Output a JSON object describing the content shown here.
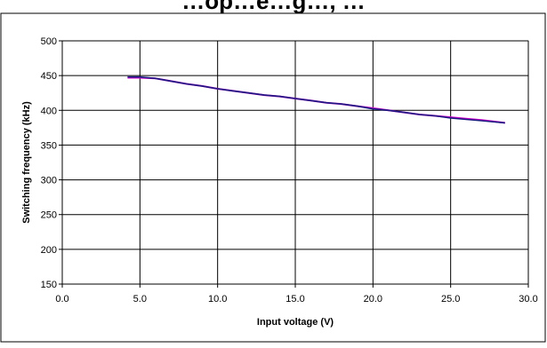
{
  "chart_data": {
    "type": "line",
    "title": "…op…e…g…, …",
    "xlabel": "Input voltage (V)",
    "ylabel": "Switching frequency (kHz)",
    "xlim": [
      0,
      30
    ],
    "ylim": [
      150,
      500
    ],
    "x_ticks": [
      "0.0",
      "5.0",
      "10.0",
      "15.0",
      "20.0",
      "25.0",
      "30.0"
    ],
    "y_ticks": [
      "150",
      "200",
      "250",
      "300",
      "350",
      "400",
      "450",
      "500"
    ],
    "grid": true,
    "series": [
      {
        "color": "#cc00cc",
        "x": [
          4.2,
          5.0,
          6.0,
          7.0,
          8.0,
          9.0,
          10.0,
          11.0,
          12.0,
          13.0,
          14.0,
          15.0,
          16.0,
          17.0,
          18.0,
          19.0,
          20.0,
          21.0,
          22.0,
          23.0,
          24.0,
          25.0,
          26.0,
          27.0,
          28.5
        ],
        "y": [
          447,
          447,
          446,
          442,
          438,
          435,
          431,
          428,
          425,
          422,
          420,
          417,
          414,
          411,
          409,
          406,
          403,
          400,
          397,
          394,
          392,
          390,
          388,
          386,
          382
        ]
      },
      {
        "color": "#1a1a80",
        "x": [
          4.2,
          5.0,
          6.0,
          7.0,
          8.0,
          9.0,
          10.0,
          11.0,
          12.0,
          13.0,
          14.0,
          15.0,
          16.0,
          17.0,
          18.0,
          19.0,
          20.0,
          21.0,
          22.0,
          23.0,
          24.0,
          25.0,
          26.0,
          27.0,
          28.5
        ],
        "y": [
          448,
          448,
          446,
          442,
          438,
          435,
          431,
          428,
          425,
          422,
          420,
          417,
          414,
          411,
          409,
          406,
          402,
          400,
          397,
          394,
          392,
          389,
          387,
          385,
          382
        ]
      }
    ]
  }
}
